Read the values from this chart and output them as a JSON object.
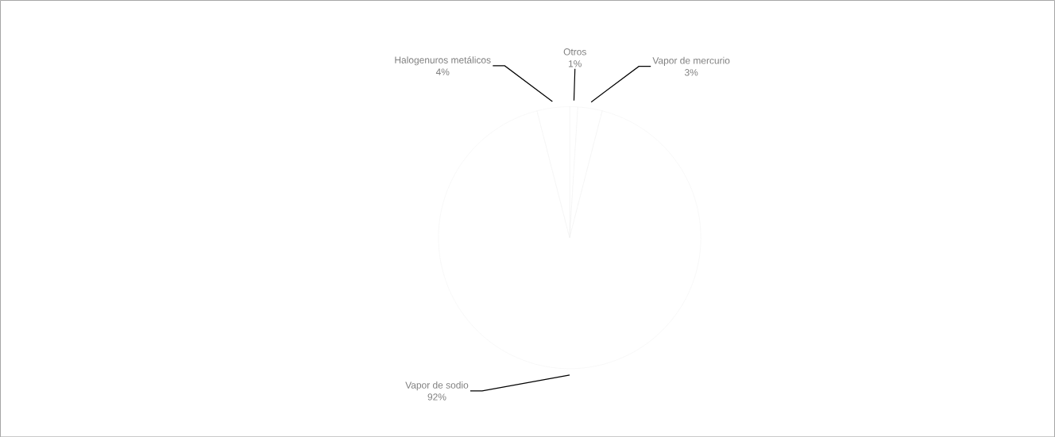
{
  "chart_data": {
    "type": "pie",
    "categories": [
      "Otros",
      "Vapor de mercurio",
      "Vapor de sodio",
      "Halogenuros metálicos"
    ],
    "values": [
      1,
      3,
      92,
      4
    ],
    "value_labels": [
      "1%",
      "3%",
      "92%",
      "4%"
    ],
    "colors": [
      "#ffffff",
      "#ffffff",
      "#ffffff",
      "#ffffff"
    ]
  }
}
